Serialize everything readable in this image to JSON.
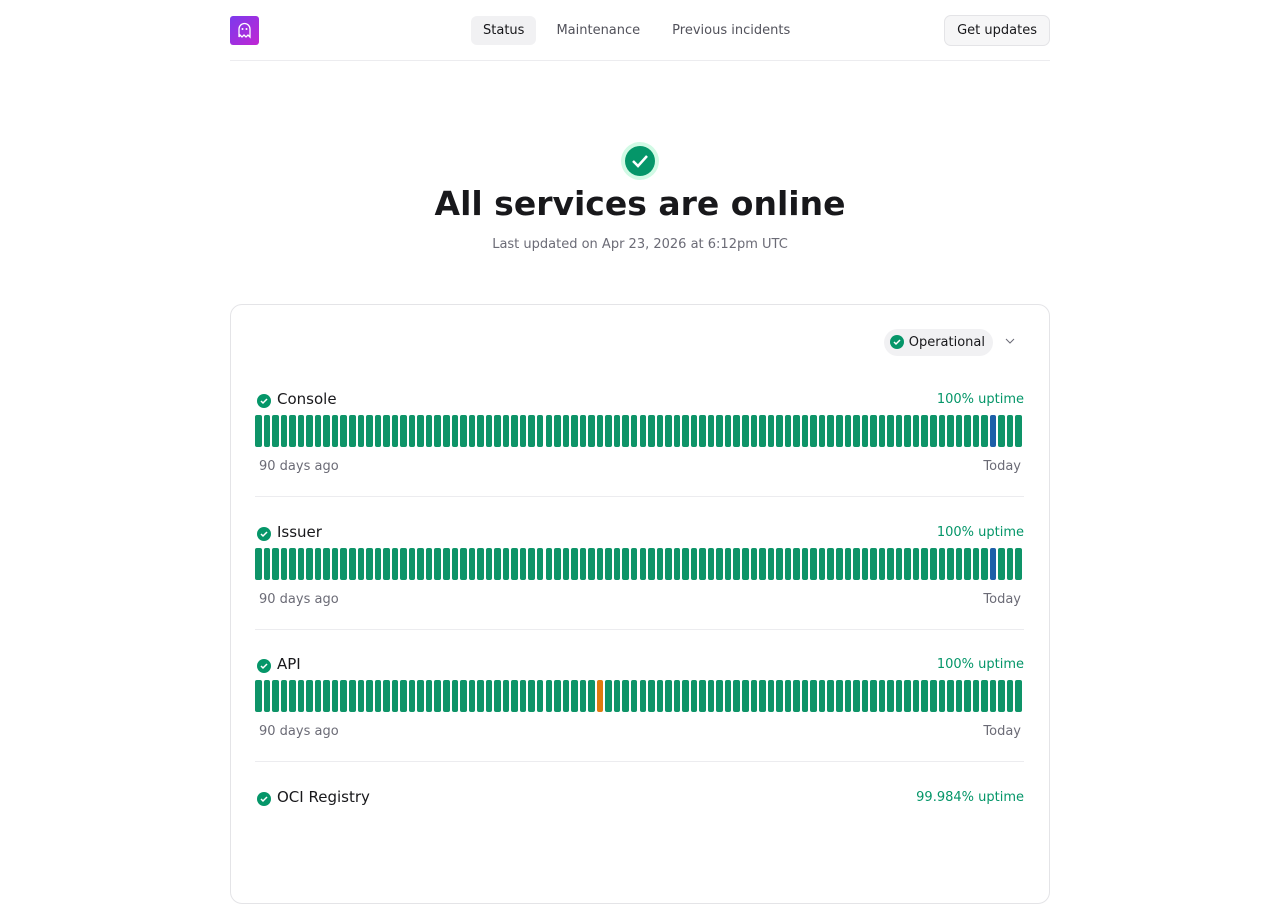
{
  "header": {
    "nav": [
      "Status",
      "Maintenance",
      "Previous incidents"
    ],
    "button": "Get updates"
  },
  "hero": {
    "title": "All services are online",
    "last_updated": "Last updated on Apr 23, 2026 at 6:12pm UTC"
  },
  "filter": "Operational",
  "services": [
    {
      "name": "Console",
      "uptime": "100% uptime",
      "start_label": "90 days ago",
      "end_label": "Today",
      "days": [
        "operational",
        "operational",
        "operational",
        "operational",
        "operational",
        "operational",
        "operational",
        "operational",
        "operational",
        "operational",
        "operational",
        "operational",
        "operational",
        "operational",
        "operational",
        "operational",
        "operational",
        "operational",
        "operational",
        "operational",
        "operational",
        "operational",
        "operational",
        "operational",
        "operational",
        "operational",
        "operational",
        "operational",
        "operational",
        "operational",
        "operational",
        "operational",
        "operational",
        "operational",
        "operational",
        "operational",
        "operational",
        "operational",
        "operational",
        "operational",
        "operational",
        "operational",
        "operational",
        "operational",
        "operational",
        "operational",
        "operational",
        "operational",
        "operational",
        "operational",
        "operational",
        "operational",
        "operational",
        "operational",
        "operational",
        "operational",
        "operational",
        "operational",
        "operational",
        "operational",
        "operational",
        "operational",
        "operational",
        "operational",
        "operational",
        "operational",
        "operational",
        "operational",
        "operational",
        "operational",
        "operational",
        "operational",
        "operational",
        "operational",
        "operational",
        "operational",
        "operational",
        "operational",
        "operational",
        "operational",
        "operational",
        "operational",
        "operational",
        "operational",
        "operational",
        "operational",
        "maintenance",
        "operational",
        "operational",
        "operational"
      ]
    },
    {
      "name": "Issuer",
      "uptime": "100% uptime",
      "start_label": "90 days ago",
      "end_label": "Today",
      "days": [
        "operational",
        "operational",
        "operational",
        "operational",
        "operational",
        "operational",
        "operational",
        "operational",
        "operational",
        "operational",
        "operational",
        "operational",
        "operational",
        "operational",
        "operational",
        "operational",
        "operational",
        "operational",
        "operational",
        "operational",
        "operational",
        "operational",
        "operational",
        "operational",
        "operational",
        "operational",
        "operational",
        "operational",
        "operational",
        "operational",
        "operational",
        "operational",
        "operational",
        "operational",
        "operational",
        "operational",
        "operational",
        "operational",
        "operational",
        "operational",
        "operational",
        "operational",
        "operational",
        "operational",
        "operational",
        "operational",
        "operational",
        "operational",
        "operational",
        "operational",
        "operational",
        "operational",
        "operational",
        "operational",
        "operational",
        "operational",
        "operational",
        "operational",
        "operational",
        "operational",
        "operational",
        "operational",
        "operational",
        "operational",
        "operational",
        "operational",
        "operational",
        "operational",
        "operational",
        "operational",
        "operational",
        "operational",
        "operational",
        "operational",
        "operational",
        "operational",
        "operational",
        "operational",
        "operational",
        "operational",
        "operational",
        "operational",
        "operational",
        "operational",
        "operational",
        "operational",
        "maintenance",
        "operational",
        "operational",
        "operational"
      ]
    },
    {
      "name": "API",
      "uptime": "100% uptime",
      "start_label": "90 days ago",
      "end_label": "Today",
      "days": [
        "operational",
        "operational",
        "operational",
        "operational",
        "operational",
        "operational",
        "operational",
        "operational",
        "operational",
        "operational",
        "operational",
        "operational",
        "operational",
        "operational",
        "operational",
        "operational",
        "operational",
        "operational",
        "operational",
        "operational",
        "operational",
        "operational",
        "operational",
        "operational",
        "operational",
        "operational",
        "operational",
        "operational",
        "operational",
        "operational",
        "operational",
        "operational",
        "operational",
        "operational",
        "operational",
        "operational",
        "operational",
        "operational",
        "operational",
        "operational",
        "degraded",
        "operational",
        "operational",
        "operational",
        "operational",
        "operational",
        "operational",
        "operational",
        "operational",
        "operational",
        "operational",
        "operational",
        "operational",
        "operational",
        "operational",
        "operational",
        "operational",
        "operational",
        "operational",
        "operational",
        "operational",
        "operational",
        "operational",
        "operational",
        "operational",
        "operational",
        "operational",
        "operational",
        "operational",
        "operational",
        "operational",
        "operational",
        "operational",
        "operational",
        "operational",
        "operational",
        "operational",
        "operational",
        "operational",
        "operational",
        "operational",
        "operational",
        "operational",
        "operational",
        "operational",
        "operational",
        "operational",
        "operational",
        "operational",
        "operational"
      ]
    },
    {
      "name": "OCI Registry",
      "uptime": "99.984% uptime"
    }
  ]
}
